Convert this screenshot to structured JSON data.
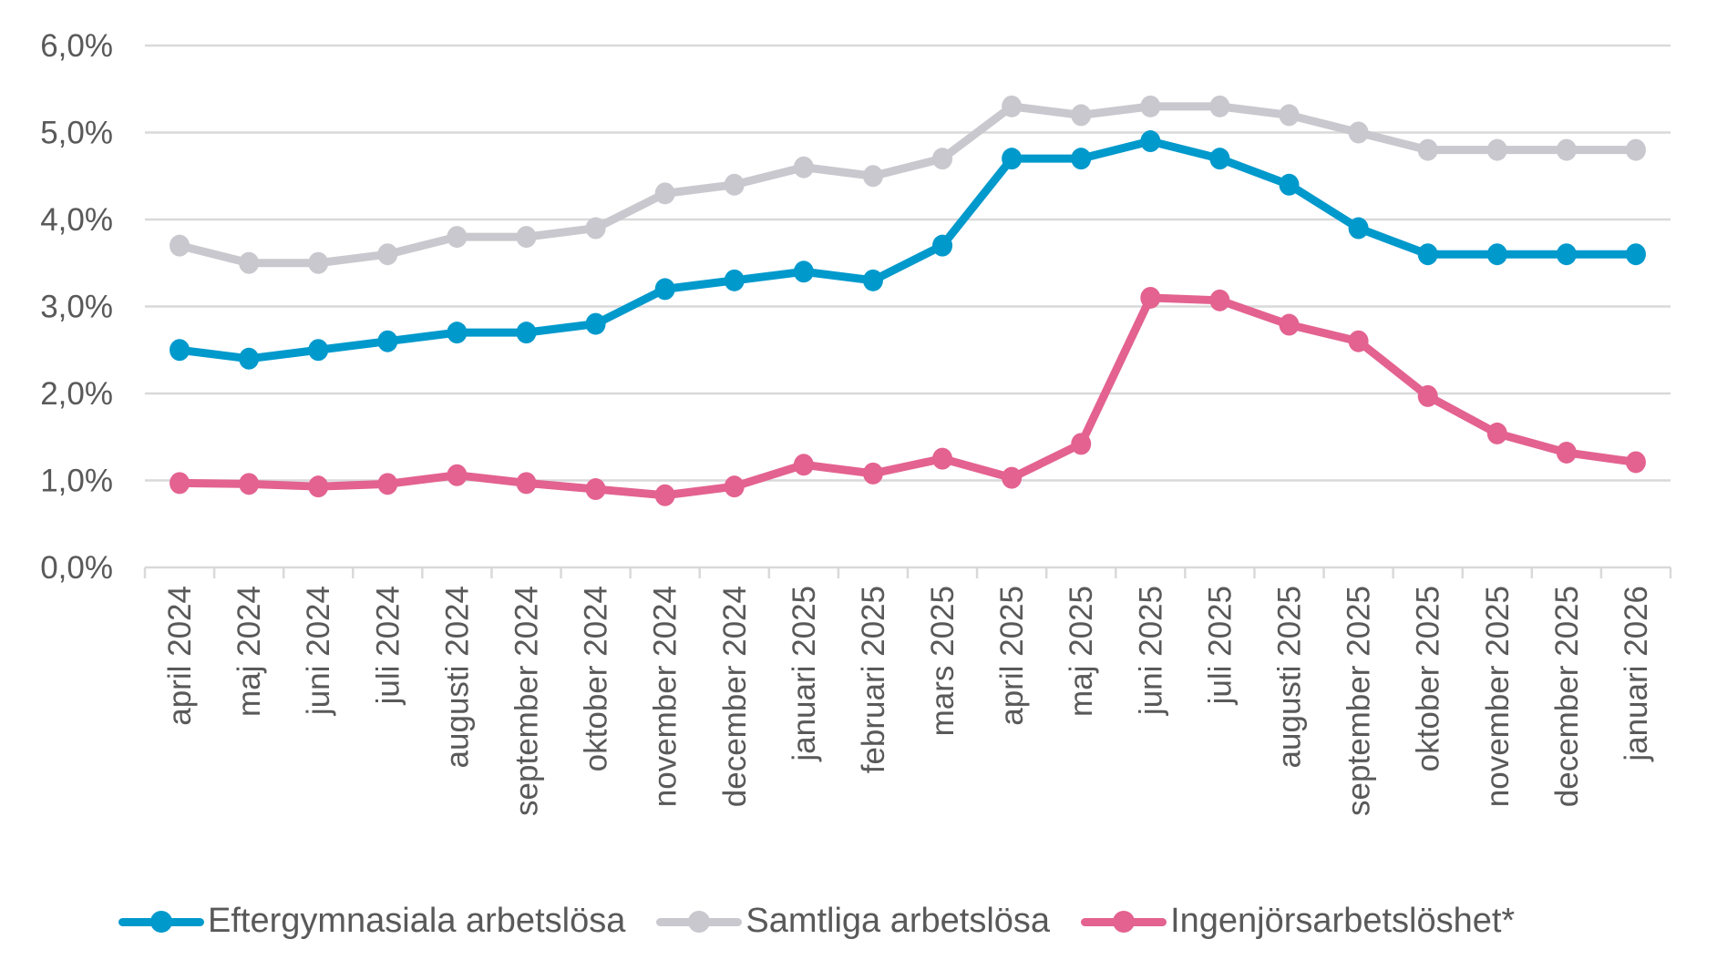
{
  "chart_data": {
    "type": "line",
    "title": "",
    "xlabel": "",
    "ylabel": "",
    "ylim": [
      0,
      6
    ],
    "y_ticks": [
      "0,0%",
      "1,0%",
      "2,0%",
      "3,0%",
      "4,0%",
      "5,0%",
      "6,0%"
    ],
    "y_tick_values": [
      0,
      1,
      2,
      3,
      4,
      5,
      6
    ],
    "grid": true,
    "legend_position": "bottom",
    "categories": [
      "april 2024",
      "maj 2024",
      "juni 2024",
      "juli 2024",
      "augusti 2024",
      "september 2024",
      "oktober 2024",
      "november 2024",
      "december 2024",
      "januari 2025",
      "februari 2025",
      "mars 2025",
      "april 2025",
      "maj 2025",
      "juni 2025",
      "juli 2025",
      "augusti 2025",
      "september 2025",
      "oktober 2025",
      "november 2025",
      "december 2025",
      "januari 2026"
    ],
    "series": [
      {
        "name": "Eftergymnasiala arbetslösa",
        "color": "#0099CC",
        "values": [
          2.5,
          2.4,
          2.5,
          2.6,
          2.7,
          2.7,
          2.8,
          3.2,
          3.3,
          3.4,
          3.3,
          3.7,
          4.7,
          4.7,
          4.9,
          4.7,
          4.4,
          3.9,
          3.6,
          3.6,
          3.6,
          3.6
        ]
      },
      {
        "name": "Samtliga arbetslösa",
        "color": "#C8C8CE",
        "values": [
          3.7,
          3.5,
          3.5,
          3.6,
          3.8,
          3.8,
          3.9,
          4.3,
          4.4,
          4.6,
          4.5,
          4.7,
          5.3,
          5.2,
          5.3,
          5.3,
          5.2,
          5.0,
          4.8,
          4.8,
          4.8,
          4.8
        ]
      },
      {
        "name": "Ingenjörsarbetslöshet*",
        "color": "#E3628F",
        "values": [
          0.97,
          0.96,
          0.93,
          0.96,
          1.06,
          0.97,
          0.9,
          0.83,
          0.93,
          1.18,
          1.08,
          1.25,
          1.03,
          1.42,
          3.1,
          3.07,
          2.79,
          2.6,
          1.97,
          1.54,
          1.32,
          1.21
        ]
      }
    ]
  },
  "legend": {
    "items": [
      {
        "label": "Eftergymnasiala arbetslösa",
        "color": "#0099CC"
      },
      {
        "label": "Samtliga arbetslösa",
        "color": "#C8C8CE"
      },
      {
        "label": "Ingenjörsarbetslöshet*",
        "color": "#E3628F"
      }
    ]
  }
}
